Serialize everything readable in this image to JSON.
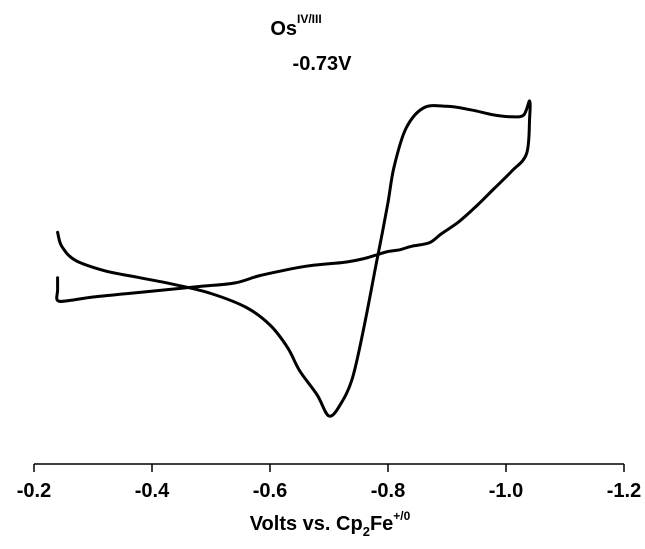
{
  "chart_data": {
    "type": "line",
    "annotation": {
      "species": "Os",
      "superscript": "IV/III",
      "potential": "-0.73V"
    },
    "xlabel": {
      "prefix": "Volts vs. Cp",
      "subscript": "2",
      "middle": "Fe",
      "superscript": "+/0"
    },
    "ylabel": "",
    "x_axis_reversed": true,
    "xlim": [
      -0.2,
      -1.2
    ],
    "ylim": [
      -1.0,
      1.0
    ],
    "x_ticks": [
      -0.2,
      -0.4,
      -0.6,
      -0.8,
      -1.0,
      -1.2
    ],
    "x_tick_labels": [
      "-0.2",
      "-0.4",
      "-0.6",
      "-0.8",
      "-1.0",
      "-1.2"
    ],
    "y_axis_visible": false,
    "grid": false,
    "series": [
      {
        "color": "#000000",
        "x": [
          -0.24,
          -0.247,
          -0.27,
          -0.32,
          -0.38,
          -0.44,
          -0.5,
          -0.56,
          -0.6,
          -0.63,
          -0.65,
          -0.68,
          -0.7,
          -0.72,
          -0.74,
          -0.76,
          -0.78,
          -0.79,
          -0.8,
          -0.81,
          -0.83,
          -0.86,
          -0.9,
          -0.94,
          -0.98,
          -1.01,
          -1.03,
          -1.04,
          -1.04,
          -1.035,
          -1.01,
          -0.98,
          -0.95,
          -0.92,
          -0.89,
          -0.87,
          -0.84,
          -0.82,
          -0.8,
          -0.78,
          -0.76,
          -0.73,
          -0.7,
          -0.67,
          -0.65,
          -0.62,
          -0.58,
          -0.54,
          -0.48,
          -0.42,
          -0.36,
          -0.3,
          -0.26,
          -0.24,
          -0.24,
          -0.24
        ],
        "y": [
          0.13,
          0.05,
          -0.03,
          -0.09,
          -0.13,
          -0.17,
          -0.22,
          -0.3,
          -0.4,
          -0.53,
          -0.66,
          -0.8,
          -0.92,
          -0.85,
          -0.7,
          -0.4,
          -0.05,
          0.12,
          0.3,
          0.5,
          0.72,
          0.84,
          0.85,
          0.83,
          0.8,
          0.79,
          0.8,
          0.88,
          0.78,
          0.58,
          0.48,
          0.38,
          0.28,
          0.19,
          0.12,
          0.07,
          0.05,
          0.03,
          0.02,
          0.0,
          -0.02,
          -0.04,
          -0.05,
          -0.06,
          -0.07,
          -0.09,
          -0.12,
          -0.16,
          -0.18,
          -0.2,
          -0.22,
          -0.24,
          -0.26,
          -0.26,
          -0.2,
          -0.13
        ]
      }
    ]
  }
}
